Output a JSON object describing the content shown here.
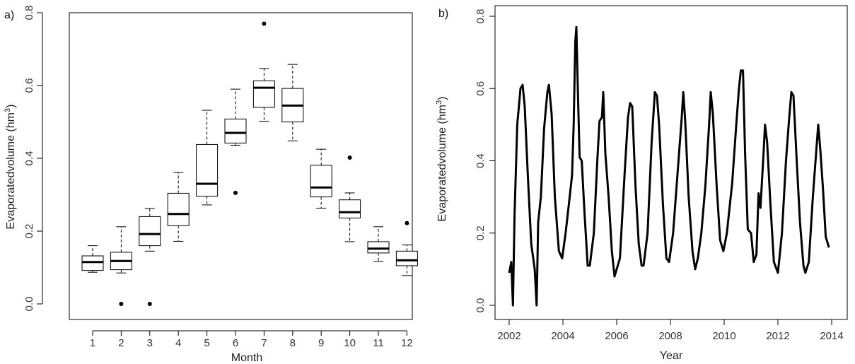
{
  "chart_data": [
    {
      "type": "box",
      "panel_label": "a)",
      "xlabel": "Month",
      "ylabel": "Evaporatedvolume (hm",
      "ylabel_sup": "3",
      "ylabel_close": ")",
      "ylim": [
        0,
        0.8
      ],
      "yticks": [
        "0.0",
        "0.2",
        "0.4",
        "0.6",
        "0.8"
      ],
      "categories": [
        "1",
        "2",
        "3",
        "4",
        "5",
        "6",
        "7",
        "8",
        "9",
        "10",
        "11",
        "12"
      ],
      "boxes": [
        {
          "lw": 0.087,
          "q1": 0.092,
          "med": 0.115,
          "q3": 0.132,
          "uw": 0.16,
          "out": []
        },
        {
          "lw": 0.085,
          "q1": 0.094,
          "med": 0.118,
          "q3": 0.142,
          "uw": 0.212,
          "out": [
            0.0
          ]
        },
        {
          "lw": 0.145,
          "q1": 0.16,
          "med": 0.192,
          "q3": 0.24,
          "uw": 0.262,
          "out": [
            0.0
          ]
        },
        {
          "lw": 0.172,
          "q1": 0.215,
          "med": 0.247,
          "q3": 0.304,
          "uw": 0.361,
          "out": []
        },
        {
          "lw": 0.272,
          "q1": 0.296,
          "med": 0.33,
          "q3": 0.438,
          "uw": 0.532,
          "out": []
        },
        {
          "lw": 0.436,
          "q1": 0.442,
          "med": 0.47,
          "q3": 0.508,
          "uw": 0.59,
          "out": [
            0.305
          ]
        },
        {
          "lw": 0.502,
          "q1": 0.54,
          "med": 0.594,
          "q3": 0.613,
          "uw": 0.647,
          "out": [
            0.77
          ]
        },
        {
          "lw": 0.448,
          "q1": 0.5,
          "med": 0.545,
          "q3": 0.592,
          "uw": 0.658,
          "out": []
        },
        {
          "lw": 0.263,
          "q1": 0.294,
          "med": 0.32,
          "q3": 0.381,
          "uw": 0.425,
          "out": []
        },
        {
          "lw": 0.171,
          "q1": 0.236,
          "med": 0.252,
          "q3": 0.286,
          "uw": 0.305,
          "out": [
            0.402
          ]
        },
        {
          "lw": 0.117,
          "q1": 0.14,
          "med": 0.152,
          "q3": 0.171,
          "uw": 0.212,
          "out": []
        },
        {
          "lw": 0.078,
          "q1": 0.105,
          "med": 0.12,
          "q3": 0.145,
          "uw": 0.162,
          "out": [
            0.222
          ]
        }
      ]
    },
    {
      "type": "line",
      "panel_label": "b)",
      "xlabel": "Year",
      "ylabel": "Evaporatedvolume (hm",
      "ylabel_sup": "3",
      "ylabel_close": ")",
      "ylim": [
        0,
        0.8
      ],
      "xlim": [
        2002,
        2014
      ],
      "yticks": [
        "0.0",
        "0.2",
        "0.4",
        "0.6",
        "0.8"
      ],
      "xticks": [
        "2002",
        "2004",
        "2006",
        "2008",
        "2010",
        "2012",
        "2014"
      ],
      "series": [
        {
          "x": [
            2002.0,
            2002.08,
            2002.14,
            2002.2,
            2002.3,
            2002.42,
            2002.5,
            2002.58,
            2002.7,
            2002.82,
            2002.95,
            2003.02,
            2003.08,
            2003.18,
            2003.3,
            2003.42,
            2003.48,
            2003.58,
            2003.7,
            2003.85,
            2003.97,
            2004.1,
            2004.22,
            2004.34,
            2004.4,
            2004.46,
            2004.5,
            2004.56,
            2004.62,
            2004.7,
            2004.8,
            2004.92,
            2005.0,
            2005.15,
            2005.28,
            2005.36,
            2005.45,
            2005.5,
            2005.58,
            2005.7,
            2005.82,
            2005.92,
            2006.0,
            2006.12,
            2006.3,
            2006.42,
            2006.5,
            2006.58,
            2006.7,
            2006.82,
            2006.93,
            2007.0,
            2007.15,
            2007.3,
            2007.42,
            2007.5,
            2007.58,
            2007.72,
            2007.85,
            2007.95,
            2008.1,
            2008.3,
            2008.42,
            2008.48,
            2008.55,
            2008.68,
            2008.82,
            2008.92,
            2009.02,
            2009.15,
            2009.3,
            2009.44,
            2009.5,
            2009.58,
            2009.72,
            2009.85,
            2009.97,
            2010.1,
            2010.3,
            2010.45,
            2010.55,
            2010.62,
            2010.7,
            2010.78,
            2010.88,
            2011.0,
            2011.1,
            2011.2,
            2011.28,
            2011.35,
            2011.45,
            2011.52,
            2011.6,
            2011.72,
            2011.85,
            2012.0,
            2012.15,
            2012.3,
            2012.42,
            2012.5,
            2012.58,
            2012.7,
            2012.82,
            2012.95,
            2013.02,
            2013.15,
            2013.3,
            2013.45,
            2013.5,
            2013.58,
            2013.68,
            2013.78,
            2013.9
          ],
          "values": [
            0.09,
            0.12,
            0.0,
            0.25,
            0.5,
            0.6,
            0.61,
            0.55,
            0.35,
            0.17,
            0.1,
            0.0,
            0.23,
            0.3,
            0.49,
            0.59,
            0.61,
            0.53,
            0.3,
            0.15,
            0.13,
            0.2,
            0.28,
            0.36,
            0.5,
            0.73,
            0.77,
            0.58,
            0.41,
            0.4,
            0.26,
            0.11,
            0.11,
            0.2,
            0.4,
            0.51,
            0.52,
            0.59,
            0.42,
            0.3,
            0.15,
            0.08,
            0.1,
            0.13,
            0.37,
            0.52,
            0.56,
            0.55,
            0.33,
            0.17,
            0.11,
            0.11,
            0.2,
            0.45,
            0.59,
            0.58,
            0.5,
            0.28,
            0.13,
            0.12,
            0.2,
            0.4,
            0.52,
            0.59,
            0.51,
            0.3,
            0.15,
            0.1,
            0.13,
            0.2,
            0.33,
            0.5,
            0.59,
            0.53,
            0.33,
            0.18,
            0.15,
            0.2,
            0.34,
            0.5,
            0.6,
            0.65,
            0.65,
            0.42,
            0.21,
            0.2,
            0.12,
            0.14,
            0.31,
            0.27,
            0.4,
            0.5,
            0.45,
            0.28,
            0.12,
            0.09,
            0.2,
            0.4,
            0.52,
            0.59,
            0.58,
            0.4,
            0.23,
            0.11,
            0.09,
            0.12,
            0.3,
            0.45,
            0.5,
            0.43,
            0.32,
            0.19,
            0.16
          ]
        }
      ]
    }
  ]
}
